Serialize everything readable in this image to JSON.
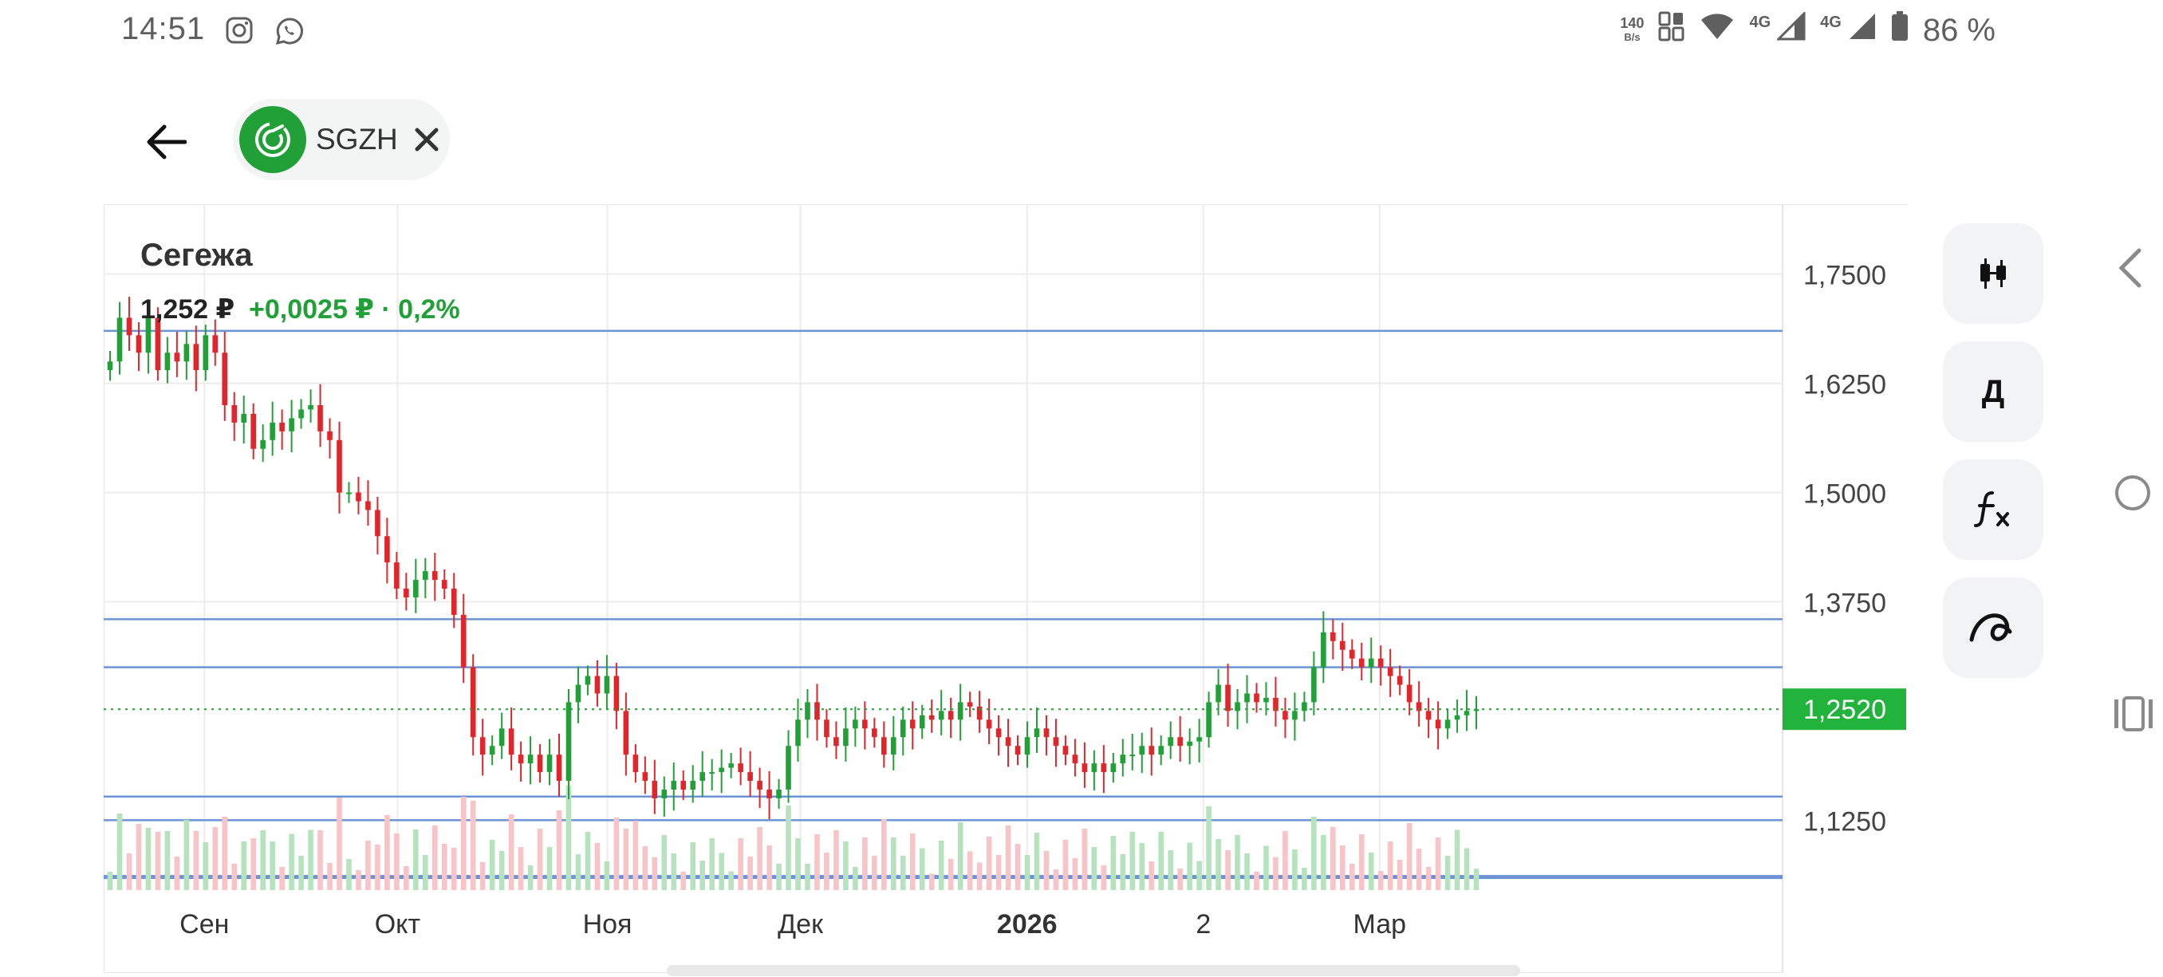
{
  "status_bar": {
    "time": "14:51",
    "left_icons": [
      "instagram-icon",
      "whatsapp-icon"
    ],
    "net_speed_value": "140",
    "net_speed_unit": "B/s",
    "network_1": "4G",
    "network_2": "4G",
    "battery": "86 %"
  },
  "header": {
    "back_icon": "arrow-left-icon",
    "ticker": "SGZH",
    "ticker_logo": "sber-logo-icon",
    "close_icon": "close-icon"
  },
  "quote": {
    "name": "Сегежа",
    "price": "1,252 ₽",
    "change": "+0,0025 ₽ · 0,2%",
    "current_price_label": "1,2520"
  },
  "colors": {
    "up": "#21a038",
    "down": "#e0262b",
    "up_volume": "#b6e3be",
    "down_volume": "#f7c4c7",
    "level_line": "#6b93d6",
    "price_badge": "#21b33b"
  },
  "tools": [
    {
      "name": "candles-tool-button",
      "icon": "candles-icon",
      "label": ""
    },
    {
      "name": "period-tool-button",
      "icon": "",
      "label": "Д"
    },
    {
      "name": "indicators-tool-button",
      "icon": "function-icon",
      "label": ""
    },
    {
      "name": "drawing-tool-button",
      "icon": "curve-icon",
      "label": ""
    }
  ],
  "nav": [
    "back-triangle-icon",
    "home-circle-icon",
    "recents-icon"
  ],
  "chart_data": {
    "type": "candlestick",
    "y_ticks": [
      "1,7500",
      "1,6250",
      "1,5000",
      "1,3750",
      "1,1250"
    ],
    "y_tick_values": [
      1.75,
      1.625,
      1.5,
      1.375,
      1.125
    ],
    "x_ticks": [
      "Сен",
      "Окт",
      "Ноя",
      "Дек",
      "2026",
      "2",
      "Мар"
    ],
    "x_tick_bold": [
      false,
      false,
      false,
      false,
      true,
      false,
      false
    ],
    "ylim": [
      1.045,
      1.83
    ],
    "current_price": 1.252,
    "grid": true,
    "horizontal_levels": [
      1.685,
      1.355,
      1.3,
      1.152,
      1.125,
      1.06
    ],
    "closes": [
      1.65,
      1.7,
      1.68,
      1.66,
      1.7,
      1.64,
      1.66,
      1.65,
      1.67,
      1.64,
      1.68,
      1.66,
      1.6,
      1.58,
      1.59,
      1.55,
      1.56,
      1.58,
      1.57,
      1.585,
      1.595,
      1.6,
      1.57,
      1.56,
      1.5,
      1.5,
      1.49,
      1.48,
      1.45,
      1.42,
      1.39,
      1.38,
      1.4,
      1.41,
      1.4,
      1.39,
      1.36,
      1.3,
      1.22,
      1.2,
      1.21,
      1.23,
      1.2,
      1.19,
      1.2,
      1.18,
      1.2,
      1.17,
      1.26,
      1.28,
      1.29,
      1.27,
      1.29,
      1.25,
      1.2,
      1.18,
      1.17,
      1.15,
      1.16,
      1.17,
      1.16,
      1.17,
      1.18,
      1.18,
      1.185,
      1.19,
      1.18,
      1.17,
      1.16,
      1.15,
      1.16,
      1.21,
      1.24,
      1.26,
      1.24,
      1.22,
      1.21,
      1.23,
      1.24,
      1.23,
      1.22,
      1.2,
      1.22,
      1.24,
      1.23,
      1.245,
      1.24,
      1.25,
      1.24,
      1.26,
      1.255,
      1.24,
      1.23,
      1.22,
      1.21,
      1.2,
      1.22,
      1.23,
      1.22,
      1.21,
      1.2,
      1.19,
      1.18,
      1.19,
      1.18,
      1.19,
      1.2,
      1.2,
      1.21,
      1.2,
      1.21,
      1.22,
      1.21,
      1.215,
      1.22,
      1.26,
      1.28,
      1.25,
      1.26,
      1.27,
      1.26,
      1.265,
      1.25,
      1.24,
      1.25,
      1.26,
      1.3,
      1.34,
      1.33,
      1.32,
      1.31,
      1.3,
      1.31,
      1.3,
      1.29,
      1.28,
      1.26,
      1.25,
      1.24,
      1.23,
      1.24,
      1.245,
      1.25,
      1.252
    ]
  }
}
